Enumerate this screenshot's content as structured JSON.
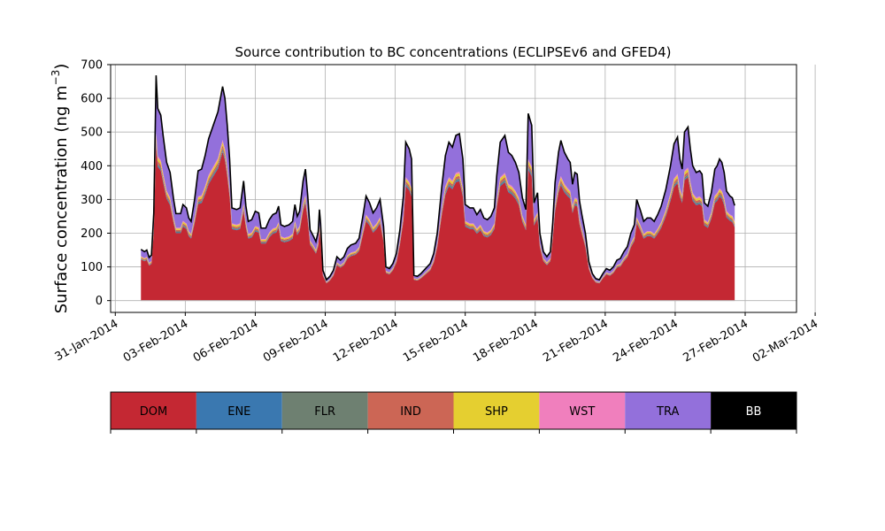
{
  "chart_data": {
    "type": "area",
    "title": "Source contribution to BC concentrations (ECLIPSEv6 and GFED4)",
    "ylabel": "Surface concentration (ng m$^{-3}$)",
    "ylabel_text": "Surface concentration (ng m",
    "ylabel_exp": "−3",
    "ylabel_close": ")",
    "ylim": [
      -35,
      700
    ],
    "yticks": [
      0,
      100,
      200,
      300,
      400,
      500,
      600,
      700
    ],
    "ytick_labels": [
      "0",
      "100",
      "200",
      "300",
      "400",
      "500",
      "600",
      "700"
    ],
    "xlim_days": [
      -0.2,
      29.2
    ],
    "xaxis_origin": "31-Jan-2014",
    "xtick_days": [
      0,
      3,
      6,
      9,
      12,
      15,
      18,
      21,
      24,
      27,
      30
    ],
    "xtick_labels": [
      "31-Jan-2014",
      "03-Feb-2014",
      "06-Feb-2014",
      "09-Feb-2014",
      "12-Feb-2014",
      "15-Feb-2014",
      "18-Feb-2014",
      "21-Feb-2014",
      "24-Feb-2014",
      "27-Feb-2014",
      "02-Mar-2014"
    ],
    "grid": true,
    "legend_position": "below",
    "series": [
      {
        "name": "DOM",
        "color": "#c42833"
      },
      {
        "name": "ENE",
        "color": "#3a78b0"
      },
      {
        "name": "FLR",
        "color": "#6e8071"
      },
      {
        "name": "IND",
        "color": "#cc6655"
      },
      {
        "name": "SHP",
        "color": "#e5cf30"
      },
      {
        "name": "WST",
        "color": "#f07fbd"
      },
      {
        "name": "TRA",
        "color": "#9370db"
      },
      {
        "name": "BB",
        "color": "#000000"
      }
    ],
    "total_points": [
      [
        1.1,
        152
      ],
      [
        1.25,
        145
      ],
      [
        1.35,
        150
      ],
      [
        1.45,
        128
      ],
      [
        1.55,
        135
      ],
      [
        1.65,
        260
      ],
      [
        1.75,
        668
      ],
      [
        1.82,
        570
      ],
      [
        1.95,
        550
      ],
      [
        2.05,
        490
      ],
      [
        2.2,
        410
      ],
      [
        2.35,
        380
      ],
      [
        2.5,
        300
      ],
      [
        2.6,
        258
      ],
      [
        2.8,
        258
      ],
      [
        2.9,
        285
      ],
      [
        3.05,
        275
      ],
      [
        3.15,
        245
      ],
      [
        3.25,
        235
      ],
      [
        3.4,
        300
      ],
      [
        3.55,
        385
      ],
      [
        3.7,
        390
      ],
      [
        3.85,
        430
      ],
      [
        4.0,
        480
      ],
      [
        4.2,
        520
      ],
      [
        4.4,
        560
      ],
      [
        4.6,
        635
      ],
      [
        4.7,
        600
      ],
      [
        4.8,
        520
      ],
      [
        4.9,
        420
      ],
      [
        5.0,
        275
      ],
      [
        5.2,
        270
      ],
      [
        5.35,
        275
      ],
      [
        5.5,
        355
      ],
      [
        5.6,
        280
      ],
      [
        5.7,
        235
      ],
      [
        5.85,
        240
      ],
      [
        6.0,
        265
      ],
      [
        6.15,
        260
      ],
      [
        6.25,
        215
      ],
      [
        6.45,
        215
      ],
      [
        6.6,
        240
      ],
      [
        6.75,
        255
      ],
      [
        6.9,
        260
      ],
      [
        7.0,
        280
      ],
      [
        7.1,
        225
      ],
      [
        7.25,
        220
      ],
      [
        7.45,
        225
      ],
      [
        7.6,
        235
      ],
      [
        7.7,
        285
      ],
      [
        7.8,
        250
      ],
      [
        7.9,
        265
      ],
      [
        8.05,
        355
      ],
      [
        8.15,
        390
      ],
      [
        8.25,
        310
      ],
      [
        8.35,
        210
      ],
      [
        8.5,
        190
      ],
      [
        8.6,
        175
      ],
      [
        8.7,
        205
      ],
      [
        8.75,
        270
      ],
      [
        8.8,
        230
      ],
      [
        8.9,
        90
      ],
      [
        9.05,
        62
      ],
      [
        9.2,
        72
      ],
      [
        9.35,
        90
      ],
      [
        9.5,
        130
      ],
      [
        9.65,
        120
      ],
      [
        9.8,
        130
      ],
      [
        9.95,
        155
      ],
      [
        10.1,
        165
      ],
      [
        10.3,
        170
      ],
      [
        10.45,
        185
      ],
      [
        10.6,
        245
      ],
      [
        10.75,
        310
      ],
      [
        10.9,
        290
      ],
      [
        11.05,
        260
      ],
      [
        11.2,
        275
      ],
      [
        11.35,
        300
      ],
      [
        11.5,
        220
      ],
      [
        11.6,
        100
      ],
      [
        11.75,
        95
      ],
      [
        11.9,
        110
      ],
      [
        12.05,
        140
      ],
      [
        12.2,
        210
      ],
      [
        12.35,
        310
      ],
      [
        12.45,
        470
      ],
      [
        12.6,
        450
      ],
      [
        12.7,
        420
      ],
      [
        12.8,
        75
      ],
      [
        12.95,
        72
      ],
      [
        13.1,
        80
      ],
      [
        13.3,
        95
      ],
      [
        13.5,
        110
      ],
      [
        13.65,
        140
      ],
      [
        13.8,
        200
      ],
      [
        14.0,
        340
      ],
      [
        14.15,
        430
      ],
      [
        14.3,
        470
      ],
      [
        14.45,
        455
      ],
      [
        14.6,
        490
      ],
      [
        14.75,
        495
      ],
      [
        14.9,
        420
      ],
      [
        15.0,
        285
      ],
      [
        15.2,
        275
      ],
      [
        15.35,
        275
      ],
      [
        15.5,
        255
      ],
      [
        15.65,
        270
      ],
      [
        15.8,
        245
      ],
      [
        15.95,
        240
      ],
      [
        16.1,
        250
      ],
      [
        16.25,
        275
      ],
      [
        16.35,
        370
      ],
      [
        16.5,
        470
      ],
      [
        16.7,
        490
      ],
      [
        16.85,
        440
      ],
      [
        17.0,
        430
      ],
      [
        17.15,
        410
      ],
      [
        17.3,
        380
      ],
      [
        17.45,
        305
      ],
      [
        17.6,
        270
      ],
      [
        17.7,
        555
      ],
      [
        17.85,
        520
      ],
      [
        17.95,
        290
      ],
      [
        18.1,
        320
      ],
      [
        18.2,
        200
      ],
      [
        18.35,
        145
      ],
      [
        18.5,
        130
      ],
      [
        18.65,
        145
      ],
      [
        18.75,
        230
      ],
      [
        18.85,
        350
      ],
      [
        19.0,
        440
      ],
      [
        19.1,
        475
      ],
      [
        19.25,
        440
      ],
      [
        19.4,
        420
      ],
      [
        19.5,
        410
      ],
      [
        19.6,
        345
      ],
      [
        19.7,
        380
      ],
      [
        19.8,
        375
      ],
      [
        19.9,
        295
      ],
      [
        20.0,
        255
      ],
      [
        20.15,
        200
      ],
      [
        20.3,
        115
      ],
      [
        20.45,
        80
      ],
      [
        20.6,
        65
      ],
      [
        20.75,
        62
      ],
      [
        20.9,
        80
      ],
      [
        21.05,
        95
      ],
      [
        21.2,
        90
      ],
      [
        21.35,
        100
      ],
      [
        21.5,
        120
      ],
      [
        21.65,
        125
      ],
      [
        21.8,
        145
      ],
      [
        21.95,
        160
      ],
      [
        22.1,
        200
      ],
      [
        22.25,
        225
      ],
      [
        22.35,
        300
      ],
      [
        22.5,
        270
      ],
      [
        22.65,
        235
      ],
      [
        22.8,
        245
      ],
      [
        22.95,
        245
      ],
      [
        23.1,
        235
      ],
      [
        23.25,
        255
      ],
      [
        23.4,
        280
      ],
      [
        23.6,
        330
      ],
      [
        23.8,
        400
      ],
      [
        23.95,
        465
      ],
      [
        24.1,
        485
      ],
      [
        24.2,
        420
      ],
      [
        24.3,
        390
      ],
      [
        24.4,
        500
      ],
      [
        24.55,
        515
      ],
      [
        24.65,
        450
      ],
      [
        24.75,
        400
      ],
      [
        24.9,
        380
      ],
      [
        25.05,
        385
      ],
      [
        25.15,
        375
      ],
      [
        25.25,
        290
      ],
      [
        25.4,
        280
      ],
      [
        25.55,
        320
      ],
      [
        25.7,
        390
      ],
      [
        25.8,
        400
      ],
      [
        25.9,
        420
      ],
      [
        26.0,
        410
      ],
      [
        26.1,
        380
      ],
      [
        26.2,
        325
      ],
      [
        26.35,
        310
      ],
      [
        26.45,
        305
      ],
      [
        26.55,
        282
      ]
    ],
    "share": {
      "IND": 0.02,
      "ENE": 0.01,
      "FLR": 0.012,
      "SHP": 0.02,
      "WST": 0.012
    }
  },
  "legend": {
    "items": [
      "DOM",
      "ENE",
      "FLR",
      "IND",
      "SHP",
      "WST",
      "TRA",
      "BB"
    ],
    "text_colors": [
      "#000000",
      "#000000",
      "#000000",
      "#000000",
      "#000000",
      "#000000",
      "#000000",
      "#ffffff"
    ]
  }
}
